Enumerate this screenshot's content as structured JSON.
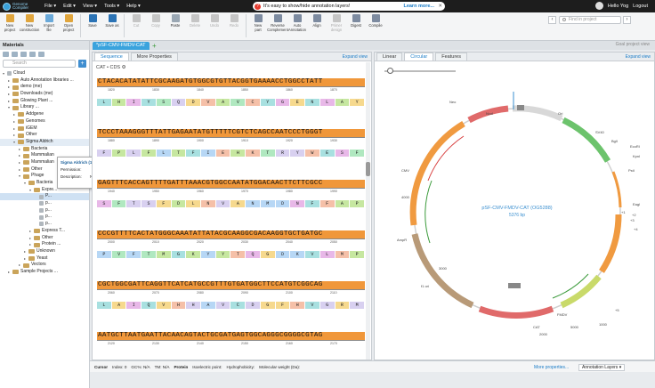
{
  "app": {
    "logo_line1": "Genome",
    "logo_line2": "Compiler",
    "menus": [
      "File",
      "Edit",
      "View",
      "Tools",
      "Help"
    ]
  },
  "notice": {
    "text": "It's easy to show/hide annotation layers!",
    "learn": "Learn more..."
  },
  "user": {
    "name": "Hello Yog",
    "logout": "Logout"
  },
  "toolbar": [
    {
      "l1": "New",
      "l2": "project",
      "color": "#e0a53c"
    },
    {
      "l1": "New",
      "l2": "construction",
      "color": "#e0a53c"
    },
    {
      "l1": "Import",
      "l2": "file",
      "color": "#6aa9d9"
    },
    {
      "l1": "Open",
      "l2": "project",
      "color": "#e0a53c"
    },
    {
      "l1": "Save",
      "l2": "",
      "color": "#2b73b5"
    },
    {
      "l1": "Save as",
      "l2": "",
      "color": "#2b73b5"
    },
    {
      "l1": "Cut",
      "l2": "",
      "color": "#c5c5c5",
      "dis": true
    },
    {
      "l1": "Copy",
      "l2": "",
      "color": "#c5c5c5",
      "dis": true
    },
    {
      "l1": "Paste",
      "l2": "",
      "color": "#9aa7b3"
    },
    {
      "l1": "Delete",
      "l2": "",
      "color": "#c5c5c5",
      "dis": true
    },
    {
      "l1": "Undo",
      "l2": "",
      "color": "#c5c5c5",
      "dis": true
    },
    {
      "l1": "Redo",
      "l2": "",
      "color": "#c5c5c5",
      "dis": true
    },
    {
      "l1": "New",
      "l2": "part",
      "color": "#7d8ba0"
    },
    {
      "l1": "Reverse",
      "l2": "Complement",
      "color": "#7d8ba0"
    },
    {
      "l1": "Auto",
      "l2": "Annotation",
      "color": "#7d8ba0"
    },
    {
      "l1": "Align",
      "l2": "",
      "color": "#7d8ba0"
    },
    {
      "l1": "Primer",
      "l2": "design",
      "color": "#c5c5c5",
      "dis": true
    },
    {
      "l1": "Digest",
      "l2": "",
      "color": "#7d8ba0"
    },
    {
      "l1": "Compile",
      "l2": "",
      "color": "#7d8ba0"
    }
  ],
  "find": {
    "placeholder": "Find in project"
  },
  "left": {
    "title": "Materials",
    "search": "Search",
    "tree": [
      {
        "t": "Cloud",
        "d": 0,
        "a": "▾",
        "f": false
      },
      {
        "t": "Auto Annotation libraries ...",
        "d": 1,
        "a": "▸",
        "f": true
      },
      {
        "t": "demo (me)",
        "d": 1,
        "a": "▸",
        "f": true
      },
      {
        "t": "Downloads (me)",
        "d": 1,
        "a": "▸",
        "f": true
      },
      {
        "t": "Glowing Plant ...",
        "d": 1,
        "a": "▸",
        "f": true
      },
      {
        "t": "Library ...",
        "d": 1,
        "a": "▾",
        "f": true
      },
      {
        "t": "Addgene",
        "d": 2,
        "a": "▸",
        "f": true
      },
      {
        "t": "Genomes",
        "d": 2,
        "a": "▸",
        "f": true
      },
      {
        "t": "iGEM",
        "d": 2,
        "a": "▸",
        "f": true
      },
      {
        "t": "Other",
        "d": 2,
        "a": "▸",
        "f": true
      },
      {
        "t": "Sigma Aldrich",
        "d": 2,
        "a": "▾",
        "f": true,
        "sel2": true
      },
      {
        "t": "Bacteria",
        "d": 3,
        "a": "▸",
        "f": true
      },
      {
        "t": "Mammalian",
        "d": 3,
        "a": "▸",
        "f": true
      },
      {
        "t": "Mammalian",
        "d": 3,
        "a": "▸",
        "f": true
      },
      {
        "t": "Other",
        "d": 3,
        "a": "▸",
        "f": true
      },
      {
        "t": "Phage",
        "d": 3,
        "a": "▾",
        "f": true
      },
      {
        "t": "Bacteria",
        "d": 4,
        "a": "▾",
        "f": true
      },
      {
        "t": "Expre...",
        "d": 5,
        "a": "▾",
        "f": true
      },
      {
        "t": "P...",
        "d": 6,
        "a": "",
        "f": false,
        "sel": true
      },
      {
        "t": "p...",
        "d": 6,
        "a": "",
        "f": false
      },
      {
        "t": "p...",
        "d": 6,
        "a": "",
        "f": false
      },
      {
        "t": "p...",
        "d": 6,
        "a": "",
        "f": false
      },
      {
        "t": "p...",
        "d": 6,
        "a": "",
        "f": false
      },
      {
        "t": "Express T...",
        "d": 5,
        "a": "▸",
        "f": true
      },
      {
        "t": "Other",
        "d": 5,
        "a": "▸",
        "f": true
      },
      {
        "t": "Protein ...",
        "d": 5,
        "a": "▸",
        "f": true
      },
      {
        "t": "Unknown",
        "d": 4,
        "a": "▸",
        "f": true
      },
      {
        "t": "Yeast",
        "d": 4,
        "a": "▸",
        "f": true
      },
      {
        "t": "Vectors",
        "d": 3,
        "a": "▸",
        "f": true
      },
      {
        "t": "Sample Projects ...",
        "d": 1,
        "a": "▸",
        "f": true
      }
    ]
  },
  "tooltip": {
    "title": "Sigma Aldrich (1662 projects, 137 folders)",
    "perm": "Permission:",
    "desc": "Description:",
    "desc_val": "N/A"
  },
  "doc_tab": "*pSF-CMV-FMDV-CAT ( ...",
  "goal": "Goal project view",
  "seq": {
    "tabs": [
      "Sequence",
      "More Properties"
    ],
    "expand": "Expand view",
    "header": "CAT • CDS ⚙",
    "rows": [
      {
        "dna": "CTACACATATATTCGCAAGATGTGGCGTGTTACGGTGAAAACCTGGCCTATT",
        "ticks": [
          "1820",
          "1830",
          "1840",
          "1850",
          "1860",
          "1870"
        ],
        "aa": "LHIYSQDVAVCYGENLAY"
      },
      {
        "dna": "TCCCTAAAGGGTTTATTGAGAATATGTTTTTCGTCTCAGCCAATCCCTGGGT",
        "ticks": [
          "1880",
          "1890",
          "1900",
          "1910",
          "1920",
          "1930"
        ],
        "aa": "FPLFLTFIEHKTRYWESF"
      },
      {
        "dna": "GAGTTTCACCAGTTTTGATTTAAACGTGGCCAATATGGACAACTTCTTCGCC",
        "ticks": [
          "1940",
          "1950",
          "1960",
          "1970",
          "1980",
          "1990"
        ],
        "aa": "SFTSFDLNVANMDNFFAP"
      },
      {
        "dna": "CCCGTTTTCACTATGGGCAAATATTATACGCAAGGCGACAAGGTGCTGATGC",
        "ticks": [
          "2000",
          "2010",
          "2020",
          "2030",
          "2040",
          "2050"
        ],
        "aa": "PVFTMGKYYTQGDKVLMP"
      },
      {
        "dna": "CGCTGGCGATTCAGGTTCATCATGCCGTTTGTGATGGCTTCCATGTCGGCAG",
        "ticks": [
          "2060",
          "2070",
          "2080",
          "2090",
          "2100",
          "2110"
        ],
        "aa": "LAIQVHHAVCDGFHVGRM"
      },
      {
        "dna": "AATGCTTAATGAATTACAACAGTACTGCGATGAGTGGCAGGGCGGGGCGTAG",
        "ticks": [
          "2120",
          "2130",
          "2140",
          "2150",
          "2160",
          "2170"
        ],
        "aa": ""
      }
    ]
  },
  "map": {
    "tabs": [
      "Linear",
      "Circular",
      "Features"
    ],
    "expand": "Expand view",
    "name": "pSF-CMV-FMDV-CAT (OG5288)",
    "size": "5376 bp",
    "labels": [
      "Neo",
      "Ori",
      "SV40",
      "BglI",
      "EcoRI",
      "KpnI",
      "NcoI",
      "CMV",
      "AmpR",
      "f1 ori",
      "FMDV",
      "CAT",
      "PstI",
      "Eagl",
      "+1",
      "+2",
      "+3",
      "+4",
      "+5",
      "1000",
      "2000",
      "3000",
      "4000",
      "5000"
    ]
  },
  "status": {
    "cursor": "Cursor",
    "index": "Index: 0",
    "gc": "GC%: N/A",
    "tm": "TM: N/A",
    "protein": "Protein",
    "pi": "Isoelectric point:",
    "hydro": "Hydrophobicity:",
    "mw": "Molecular weight (Da):"
  },
  "rbottom": {
    "more": "More properties...",
    "layers": "Annotation Layers ▾"
  }
}
